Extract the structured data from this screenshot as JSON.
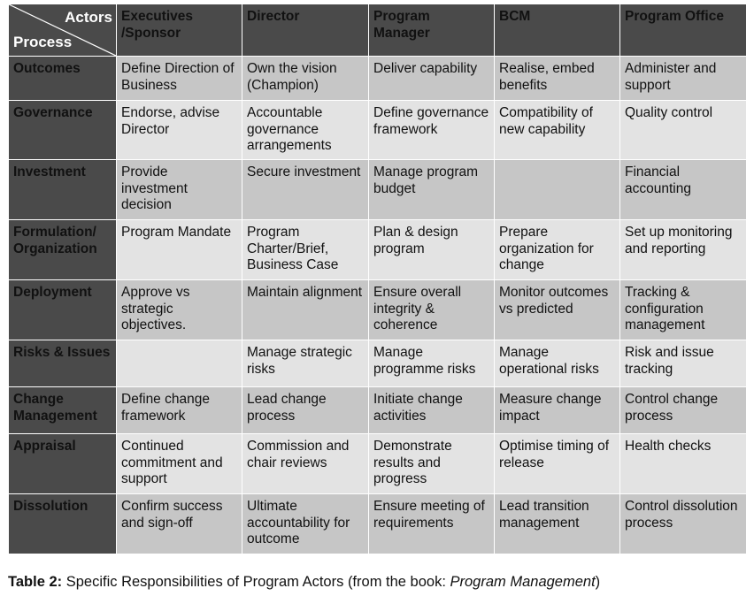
{
  "table": {
    "corner": {
      "actors": "Actors",
      "process": "Process"
    },
    "columns": [
      "Executives /Sponsor",
      "Director",
      "Program Manager",
      "BCM",
      "Program Office"
    ],
    "rows": [
      {
        "process": "Outcomes",
        "cells": [
          "Define Direction of Business",
          "Own the vision (Champion)",
          "Deliver capability",
          "Realise, embed benefits",
          "Administer and support"
        ]
      },
      {
        "process": "Governance",
        "cells": [
          "Endorse, advise Director",
          "Accountable governance arrangements",
          "Define governance framework",
          "Compatibility of new capability",
          "Quality control"
        ]
      },
      {
        "process": "Investment",
        "cells": [
          "Provide investment decision",
          "Secure investment",
          "Manage program budget",
          "",
          "Financial accounting"
        ]
      },
      {
        "process": "Formulation/ Organization",
        "cells": [
          "Program Mandate",
          "Program Charter/Brief, Business Case",
          "Plan & design program",
          "Prepare organization for change",
          "Set up monitoring and reporting"
        ]
      },
      {
        "process": "Deployment",
        "cells": [
          "Approve vs strategic objectives.",
          "Maintain alignment",
          "Ensure overall integrity & coherence",
          "Monitor outcomes vs predicted",
          "Tracking & configuration management"
        ]
      },
      {
        "process": "Risks & Issues",
        "cells": [
          "",
          "Manage strategic risks",
          "Manage programme risks",
          "Manage operational risks",
          "Risk and issue tracking"
        ]
      },
      {
        "process": "Change Management",
        "cells": [
          "Define change framework",
          "Lead change process",
          "Initiate change activities",
          "Measure change impact",
          "Control change process"
        ]
      },
      {
        "process": "Appraisal",
        "cells": [
          "Continued commitment and support",
          "Commission and chair reviews",
          "Demonstrate results and progress",
          "Optimise timing of release",
          "Health checks"
        ]
      },
      {
        "process": "Dissolution",
        "cells": [
          "Confirm success and sign-off",
          "Ultimate accountability for outcome",
          "Ensure meeting of requirements",
          "Lead transition management",
          "Control dissolution process"
        ]
      }
    ]
  },
  "caption": {
    "label": "Table 2:",
    "text": " Specific Responsibilities of Program Actors (from the book: ",
    "book": "Program Management",
    "end": ")"
  }
}
